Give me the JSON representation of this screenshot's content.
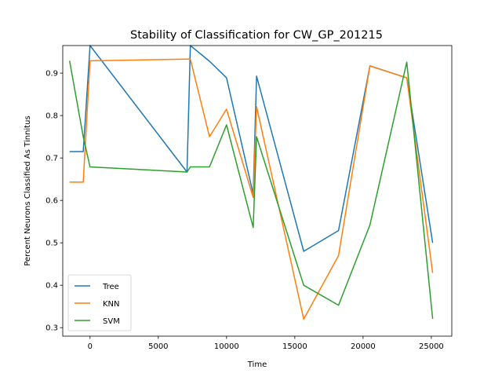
{
  "chart_data": {
    "type": "line",
    "title": "Stability of Classification for CW_GP_201215",
    "xlabel": "Time",
    "ylabel": "Percent Neurons Classified As Tinnitus",
    "xlim": [
      -2000,
      26500
    ],
    "ylim": [
      0.28,
      0.965
    ],
    "xticks": [
      0,
      5000,
      10000,
      15000,
      20000,
      25000
    ],
    "yticks": [
      0.3,
      0.4,
      0.5,
      0.6,
      0.7,
      0.8,
      0.9
    ],
    "grid": false,
    "legend_position": "lower-left",
    "series": [
      {
        "name": "Tree",
        "color": "#1f77b4",
        "x": [
          -1500,
          -500,
          0,
          7100,
          7350,
          8750,
          10000,
          11950,
          12200,
          15650,
          18200,
          20500,
          23200,
          25100
        ],
        "y": [
          0.715,
          0.715,
          0.965,
          0.667,
          0.965,
          0.928,
          0.889,
          0.615,
          0.893,
          0.48,
          0.529,
          0.917,
          0.889,
          0.5
        ]
      },
      {
        "name": "KNN",
        "color": "#ff7f0e",
        "x": [
          -1500,
          -500,
          0,
          7100,
          7350,
          8750,
          10000,
          11950,
          12200,
          15650,
          18200,
          20500,
          23200,
          25100
        ],
        "y": [
          0.643,
          0.643,
          0.929,
          0.933,
          0.933,
          0.75,
          0.815,
          0.607,
          0.821,
          0.32,
          0.47,
          0.917,
          0.889,
          0.429
        ]
      },
      {
        "name": "SVM",
        "color": "#2ca02c",
        "x": [
          -1500,
          -500,
          0,
          7100,
          7350,
          8750,
          10000,
          11950,
          12200,
          15650,
          18200,
          20500,
          23200,
          25100
        ],
        "y": [
          0.929,
          0.75,
          0.679,
          0.667,
          0.679,
          0.679,
          0.778,
          0.536,
          0.75,
          0.4,
          0.353,
          0.542,
          0.926,
          0.321
        ]
      }
    ]
  }
}
